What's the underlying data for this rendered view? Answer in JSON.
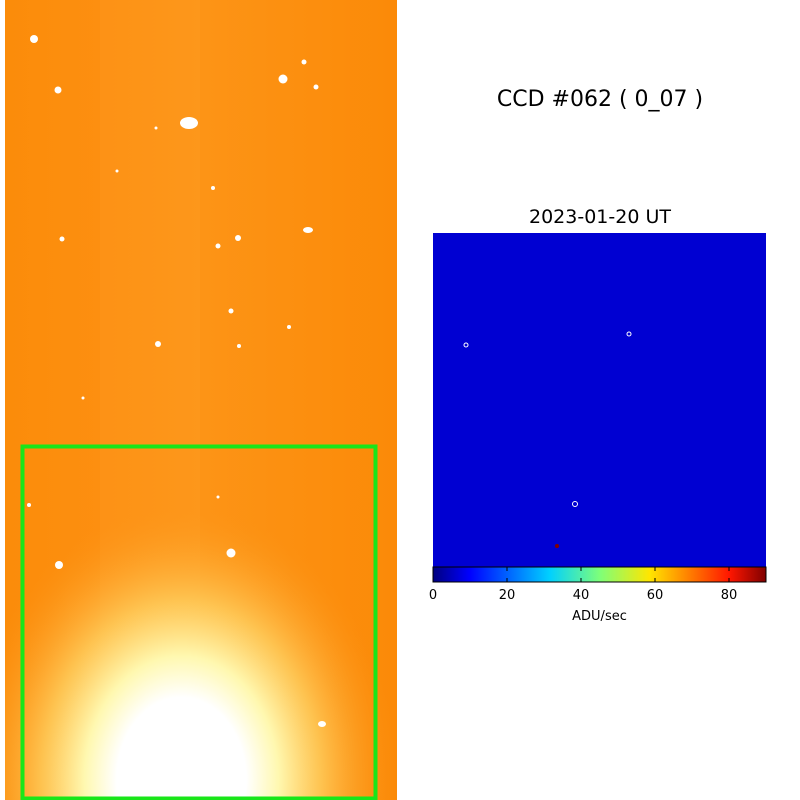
{
  "title": "CCD #062 ( 0_07 )",
  "panel_title": "2023-01-20 UT",
  "colorbar": {
    "label": "ADU/sec",
    "lim": [
      0,
      90
    ],
    "ticks": [
      0,
      20,
      40,
      60,
      80
    ]
  }
}
